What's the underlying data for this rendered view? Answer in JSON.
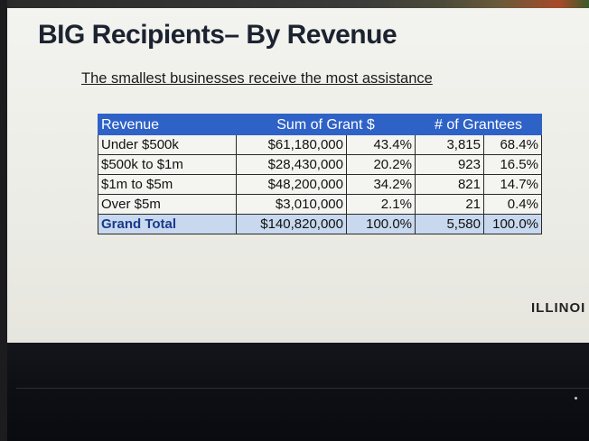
{
  "slide": {
    "title": "BIG Recipients– By Revenue",
    "subtitle": "The smallest businesses receive the most assistance",
    "logo_text": "ILLINOI"
  },
  "table": {
    "headers": {
      "revenue": "Revenue",
      "sum_of_grant": "Sum of Grant $",
      "num_grantees": "# of Grantees"
    },
    "rows": [
      {
        "revenue": "Under $500k",
        "grant": "$61,180,000",
        "grant_pct": "43.4%",
        "grantees": "3,815",
        "grantees_pct": "68.4%"
      },
      {
        "revenue": "$500k to $1m",
        "grant": "$28,430,000",
        "grant_pct": "20.2%",
        "grantees": "923",
        "grantees_pct": "16.5%"
      },
      {
        "revenue": "$1m to $5m",
        "grant": "$48,200,000",
        "grant_pct": "34.2%",
        "grantees": "821",
        "grantees_pct": "14.7%"
      },
      {
        "revenue": "Over $5m",
        "grant": "$3,010,000",
        "grant_pct": "2.1%",
        "grantees": "21",
        "grantees_pct": "0.4%"
      }
    ],
    "total": {
      "revenue": "Grand Total",
      "grant": "$140,820,000",
      "grant_pct": "100.0%",
      "grantees": "5,580",
      "grantees_pct": "100.0%"
    }
  },
  "colors": {
    "header_bg": "#2f62c7",
    "total_bg": "#c7d8ef",
    "slide_bg": "#f1f1ec"
  }
}
